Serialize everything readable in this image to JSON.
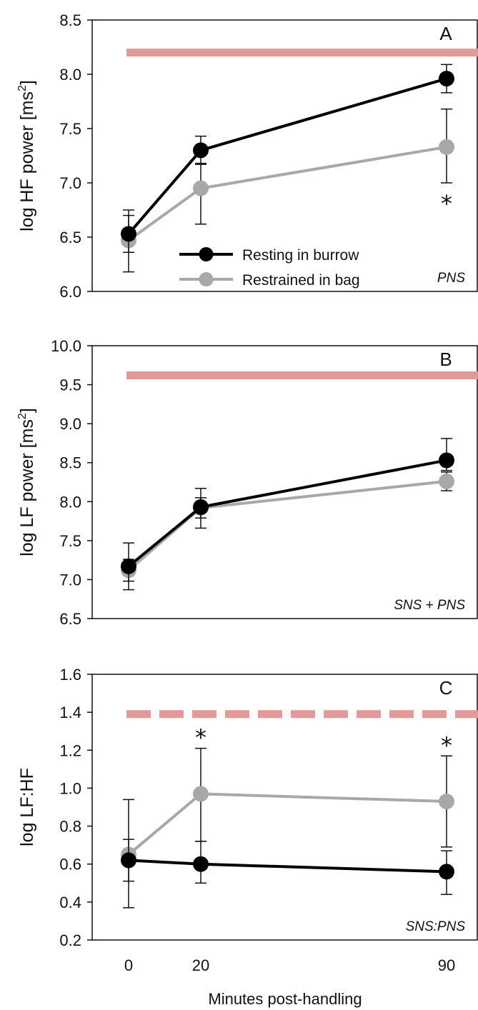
{
  "chart_data": [
    {
      "type": "line",
      "panel_label": "A",
      "corner_label": "PNS",
      "ylabel": "log HF power [ms²]",
      "ylim": [
        6.0,
        8.5
      ],
      "yticks": [
        "6.0",
        "6.5",
        "7.0",
        "7.5",
        "8.0",
        "8.5"
      ],
      "x": [
        0,
        20,
        90
      ],
      "reference_line": {
        "y": 8.2,
        "style": "solid",
        "color": "#e09a9a"
      },
      "series": [
        {
          "name": "Resting in burrow",
          "color": "#000000",
          "values": [
            6.53,
            7.3,
            7.96
          ],
          "err_up": [
            0.22,
            0.13,
            0.13
          ],
          "err_down": [
            0.17,
            0.13,
            0.13
          ]
        },
        {
          "name": "Restrained in bag",
          "color": "#a8a8a8",
          "values": [
            6.47,
            6.95,
            7.33
          ],
          "err_up": [
            0.23,
            0.23,
            0.35
          ],
          "err_down": [
            0.29,
            0.33,
            0.33
          ]
        }
      ],
      "significance": [
        {
          "x": 90,
          "symbol": "*"
        }
      ],
      "legend": {
        "placement": "bottom-left"
      }
    },
    {
      "type": "line",
      "panel_label": "B",
      "corner_label": "SNS + PNS",
      "ylabel": "log LF power [ms²]",
      "ylim": [
        6.5,
        10.0
      ],
      "yticks": [
        "6.5",
        "7.0",
        "7.5",
        "8.0",
        "8.5",
        "9.0",
        "9.5",
        "10.0"
      ],
      "x": [
        0,
        20,
        90
      ],
      "reference_line": {
        "y": 9.62,
        "style": "solid",
        "color": "#e09a9a"
      },
      "series": [
        {
          "name": "Resting in burrow",
          "color": "#000000",
          "values": [
            7.17,
            7.93,
            8.53
          ],
          "err_up": [
            0.3,
            0.24,
            0.28
          ],
          "err_down": [
            0.3,
            0.27,
            0.13
          ]
        },
        {
          "name": "Restrained in bag",
          "color": "#a8a8a8",
          "values": [
            7.12,
            7.92,
            8.26
          ],
          "err_up": [
            0.14,
            0.13,
            0.12
          ],
          "err_down": [
            0.14,
            0.13,
            0.12
          ]
        }
      ],
      "significance": []
    },
    {
      "type": "line",
      "panel_label": "C",
      "corner_label": "SNS:PNS",
      "ylabel": "log LF:HF",
      "ylim": [
        0.2,
        1.6
      ],
      "yticks": [
        "0.2",
        "0.4",
        "0.6",
        "0.8",
        "1.0",
        "1.2",
        "1.4",
        "1.6"
      ],
      "x": [
        0,
        20,
        90
      ],
      "xticks": [
        "0",
        "20",
        "90"
      ],
      "xlabel": "Minutes post-handling",
      "reference_line": {
        "y": 1.39,
        "style": "dashed",
        "color": "#e09a9a"
      },
      "series": [
        {
          "name": "Resting in burrow",
          "color": "#000000",
          "values": [
            0.62,
            0.6,
            0.56
          ],
          "err_up": [
            0.11,
            0.12,
            0.11
          ],
          "err_down": [
            0.11,
            0.1,
            0.12
          ]
        },
        {
          "name": "Restrained in bag",
          "color": "#a8a8a8",
          "values": [
            0.65,
            0.97,
            0.93
          ],
          "err_up": [
            0.29,
            0.24,
            0.24
          ],
          "err_down": [
            0.28,
            0.25,
            0.24
          ]
        }
      ],
      "significance": [
        {
          "x": 20,
          "symbol": "*"
        },
        {
          "x": 90,
          "symbol": "*"
        }
      ]
    }
  ]
}
